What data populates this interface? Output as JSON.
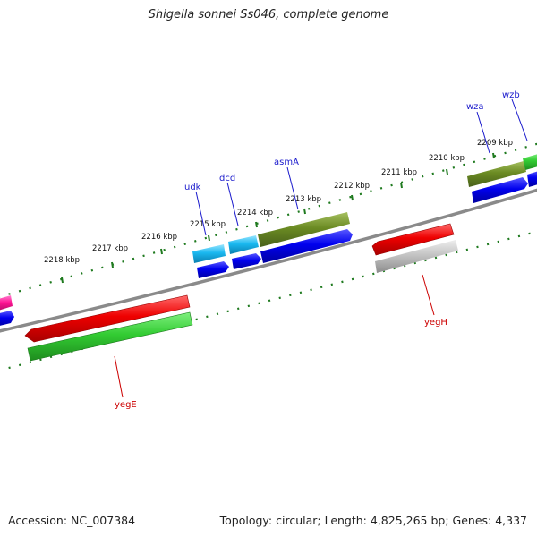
{
  "title": "Shigella sonnei Ss046, complete genome",
  "footer": {
    "accession": "Accession: NC_007384",
    "summary": "Topology: circular; Length: 4,825,265 bp; Genes: 4,337"
  },
  "colors": {
    "backbone": "#8a8a8a",
    "tick": "#1f7a1f",
    "label_forward": "#1a1acc",
    "label_reverse": "#cc0000"
  },
  "tick_labels": [
    "2218 kbp",
    "2217 kbp",
    "2216 kbp",
    "2215 kbp",
    "2214 kbp",
    "2213 kbp",
    "2212 kbp",
    "2211 kbp",
    "2210 kbp",
    "2209 kbp"
  ],
  "genes_forward": [
    "udk",
    "dcd",
    "asmA",
    "wza",
    "wzb"
  ],
  "genes_reverse": [
    "yegE",
    "yegH"
  ]
}
